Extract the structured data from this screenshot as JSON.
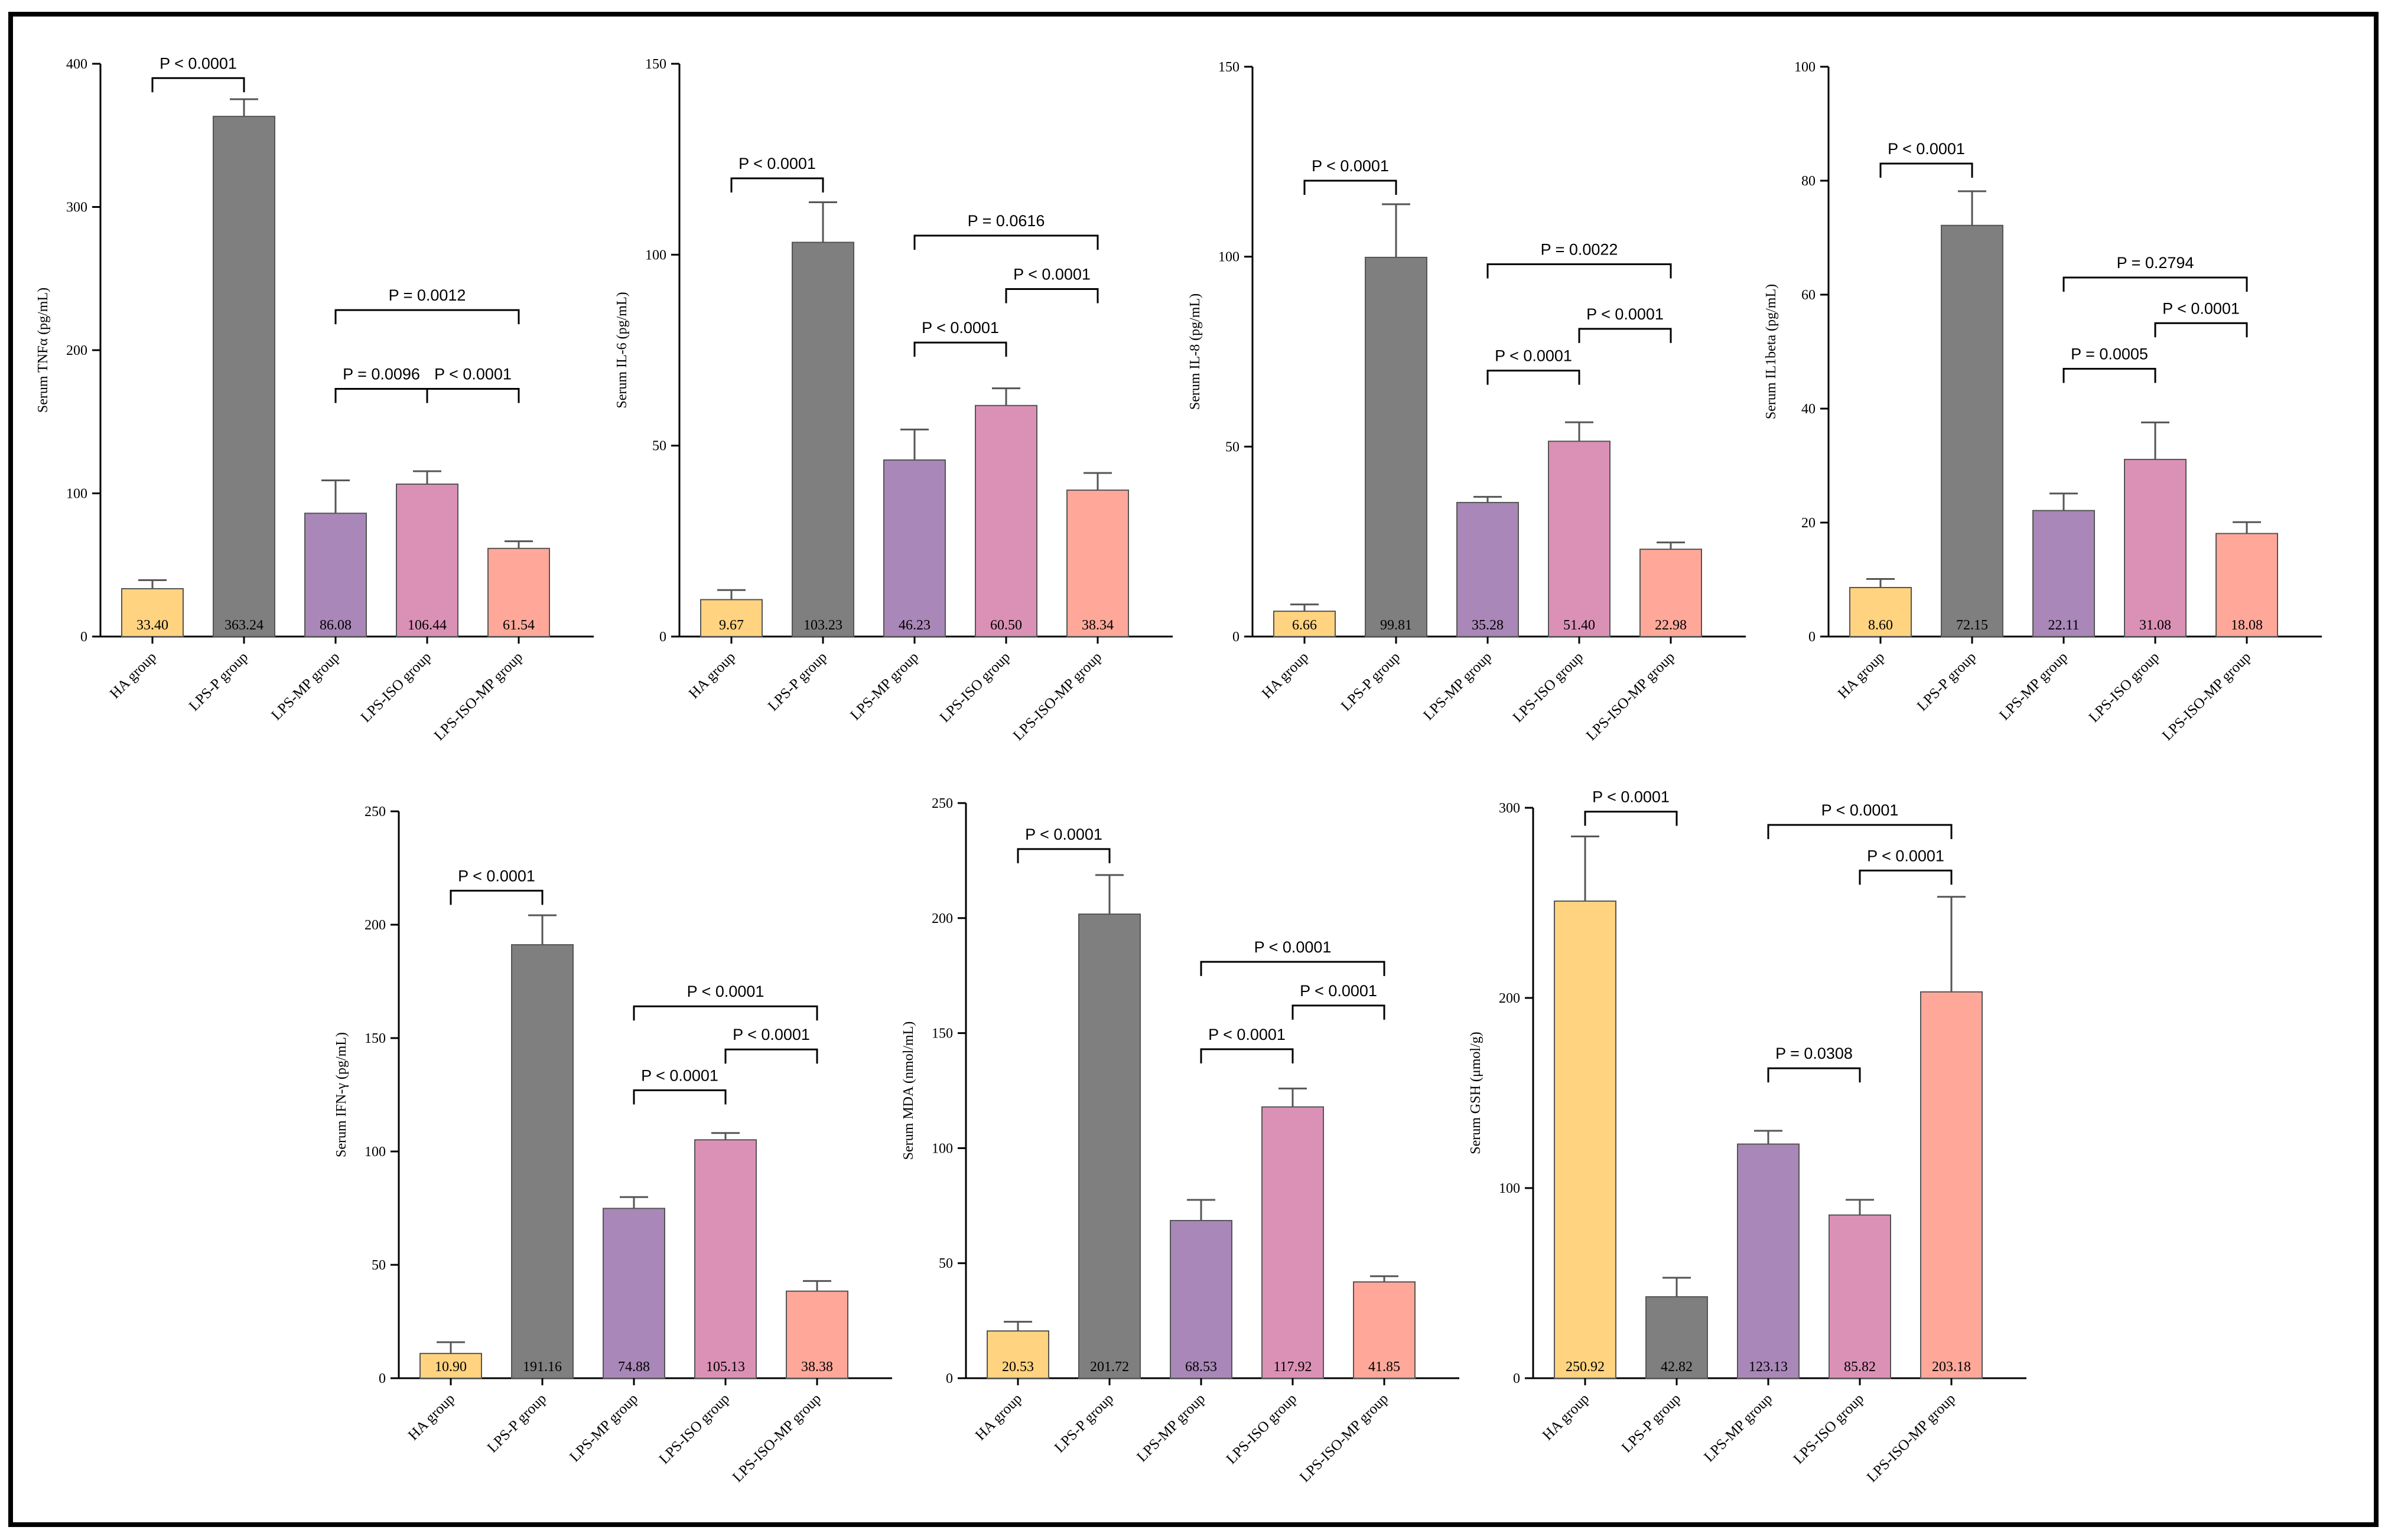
{
  "colors": {
    "HA group": "#FFD37F",
    "LPS-P group": "#7F7F7F",
    "LPS-MP group": "#A987B8",
    "LPS-ISO group": "#DB91B5",
    "LPS-ISO-MP group": "#FFA89A"
  },
  "chart_data": [
    {
      "type": "bar",
      "ylabel": "Serum TNFα (pg/mL)",
      "ylim": [
        0,
        400
      ],
      "yticks": [
        0,
        100,
        200,
        300,
        400
      ],
      "categories": [
        "HA group",
        "LPS-P group",
        "LPS-MP group",
        "LPS-ISO group",
        "LPS-ISO-MP group"
      ],
      "values": [
        33.4,
        363.24,
        86.08,
        106.44,
        61.54
      ],
      "value_labels": [
        "33.40",
        "363.24",
        "86.08",
        "106.44",
        "61.54"
      ],
      "error": [
        6,
        12,
        23,
        9,
        5
      ],
      "comparisons": [
        {
          "from": 0,
          "to": 1,
          "y": 390,
          "label": "P < 0.0001"
        },
        {
          "from": 2,
          "to": 3,
          "y": 173,
          "label": "P = 0.0096"
        },
        {
          "from": 3,
          "to": 4,
          "y": 173,
          "label": "P < 0.0001"
        },
        {
          "from": 2,
          "to": 4,
          "y": 228,
          "label": "P = 0.0012"
        }
      ]
    },
    {
      "type": "bar",
      "ylabel": "Serum IL-6 (pg/mL)",
      "ylim": [
        0,
        150
      ],
      "yticks": [
        0,
        50,
        100,
        150
      ],
      "categories": [
        "HA group",
        "LPS-P group",
        "LPS-MP group",
        "LPS-ISO group",
        "LPS-ISO-MP group"
      ],
      "values": [
        9.67,
        103.23,
        46.23,
        60.5,
        38.34
      ],
      "value_labels": [
        "9.67",
        "103.23",
        "46.23",
        "60.50",
        "38.34"
      ],
      "error": [
        2.5,
        10.5,
        8,
        4.5,
        4.5
      ],
      "comparisons": [
        {
          "from": 0,
          "to": 1,
          "y": 120,
          "label": "P < 0.0001"
        },
        {
          "from": 2,
          "to": 3,
          "y": 77,
          "label": "P < 0.0001"
        },
        {
          "from": 3,
          "to": 4,
          "y": 91,
          "label": "P < 0.0001"
        },
        {
          "from": 2,
          "to": 4,
          "y": 105,
          "label": "P = 0.0616"
        }
      ]
    },
    {
      "type": "bar",
      "ylabel": "Serum IL-8 (pg/mL)",
      "ylim": [
        0,
        150
      ],
      "yticks": [
        0,
        50,
        100,
        150
      ],
      "categories": [
        "HA group",
        "LPS-P group",
        "LPS-MP group",
        "LPS-ISO group",
        "LPS-ISO-MP group"
      ],
      "values": [
        6.66,
        99.81,
        35.28,
        51.4,
        22.98
      ],
      "value_labels": [
        "6.66",
        "99.81",
        "35.28",
        "51.40",
        "22.98"
      ],
      "error": [
        1.8,
        14,
        1.5,
        5,
        1.8
      ],
      "comparisons": [
        {
          "from": 0,
          "to": 1,
          "y": 120,
          "label": "P < 0.0001"
        },
        {
          "from": 2,
          "to": 3,
          "y": 70,
          "label": "P < 0.0001"
        },
        {
          "from": 3,
          "to": 4,
          "y": 81,
          "label": "P < 0.0001"
        },
        {
          "from": 2,
          "to": 4,
          "y": 98,
          "label": "P = 0.0022"
        }
      ]
    },
    {
      "type": "bar",
      "ylabel": "Serum IL1beta (pg/mL)",
      "ylim": [
        0,
        100
      ],
      "yticks": [
        0,
        20,
        40,
        60,
        80,
        100
      ],
      "categories": [
        "HA group",
        "LPS-P group",
        "LPS-MP group",
        "LPS-ISO group",
        "LPS-ISO-MP group"
      ],
      "values": [
        8.6,
        72.15,
        22.11,
        31.08,
        18.08
      ],
      "value_labels": [
        "8.60",
        "72.15",
        "22.11",
        "31.08",
        "18.08"
      ],
      "error": [
        1.5,
        6,
        3,
        6.5,
        2
      ],
      "comparisons": [
        {
          "from": 0,
          "to": 1,
          "y": 83,
          "label": "P < 0.0001"
        },
        {
          "from": 2,
          "to": 3,
          "y": 47,
          "label": "P = 0.0005"
        },
        {
          "from": 3,
          "to": 4,
          "y": 55,
          "label": "P < 0.0001"
        },
        {
          "from": 2,
          "to": 4,
          "y": 63,
          "label": "P = 0.2794"
        }
      ]
    },
    {
      "type": "bar",
      "ylabel": "Serum IFN-γ (pg/mL)",
      "ylim": [
        0,
        250
      ],
      "yticks": [
        0,
        50,
        100,
        150,
        200,
        250
      ],
      "categories": [
        "HA group",
        "LPS-P group",
        "LPS-MP group",
        "LPS-ISO group",
        "LPS-ISO-MP group"
      ],
      "values": [
        10.9,
        191.16,
        74.88,
        105.13,
        38.38
      ],
      "value_labels": [
        "10.90",
        "191.16",
        "74.88",
        "105.13",
        "38.38"
      ],
      "error": [
        5,
        13,
        5,
        3,
        4.5
      ],
      "comparisons": [
        {
          "from": 0,
          "to": 1,
          "y": 215,
          "label": "P < 0.0001"
        },
        {
          "from": 2,
          "to": 3,
          "y": 127,
          "label": "P < 0.0001"
        },
        {
          "from": 3,
          "to": 4,
          "y": 145,
          "label": "P < 0.0001"
        },
        {
          "from": 2,
          "to": 4,
          "y": 164,
          "label": "P < 0.0001"
        }
      ]
    },
    {
      "type": "bar",
      "ylabel": "Serum MDA (nmol/mL)",
      "ylim": [
        0,
        250
      ],
      "yticks": [
        0,
        50,
        100,
        150,
        200,
        250
      ],
      "categories": [
        "HA group",
        "LPS-P group",
        "LPS-MP group",
        "LPS-ISO group",
        "LPS-ISO-MP group"
      ],
      "values": [
        20.53,
        201.72,
        68.53,
        117.92,
        41.85
      ],
      "value_labels": [
        "20.53",
        "201.72",
        "68.53",
        "117.92",
        "41.85"
      ],
      "error": [
        4,
        17,
        9,
        8,
        2.5
      ],
      "comparisons": [
        {
          "from": 0,
          "to": 1,
          "y": 230,
          "label": "P < 0.0001"
        },
        {
          "from": 2,
          "to": 3,
          "y": 143,
          "label": "P < 0.0001"
        },
        {
          "from": 3,
          "to": 4,
          "y": 162,
          "label": "P < 0.0001"
        },
        {
          "from": 2,
          "to": 4,
          "y": 181,
          "label": "P < 0.0001"
        }
      ]
    },
    {
      "type": "bar",
      "ylabel": "Serum GSH (μmol/g)",
      "ylim": [
        0,
        300
      ],
      "yticks": [
        0,
        100,
        200,
        300
      ],
      "categories": [
        "HA group",
        "LPS-P group",
        "LPS-MP group",
        "LPS-ISO group",
        "LPS-ISO-MP group"
      ],
      "values": [
        250.92,
        42.82,
        123.13,
        85.82,
        203.18
      ],
      "value_labels": [
        "250.92",
        "42.82",
        "123.13",
        "85.82",
        "203.18"
      ],
      "error": [
        34,
        10,
        7,
        8,
        50
      ],
      "comparisons": [
        {
          "from": 0,
          "to": 1,
          "y": 298,
          "label": "P < 0.0001"
        },
        {
          "from": 2,
          "to": 4,
          "y": 291,
          "label": "P < 0.0001"
        },
        {
          "from": 3,
          "to": 4,
          "y": 267,
          "label": "P < 0.0001"
        },
        {
          "from": 2,
          "to": 3,
          "y": 163,
          "label": "P = 0.0308"
        }
      ]
    }
  ]
}
